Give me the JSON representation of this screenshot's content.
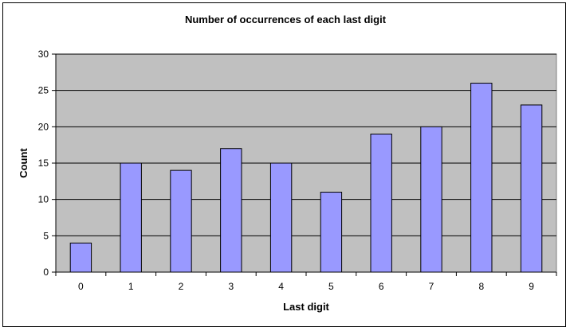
{
  "chart_data": {
    "type": "bar",
    "title": "Number of occurrences of each last digit",
    "xlabel": "Last digit",
    "ylabel": "Count",
    "categories": [
      "0",
      "1",
      "2",
      "3",
      "4",
      "5",
      "6",
      "7",
      "8",
      "9"
    ],
    "values": [
      4,
      15,
      14,
      17,
      15,
      11,
      19,
      20,
      26,
      23
    ],
    "ylim": [
      0,
      30
    ],
    "yticks": [
      "0",
      "5",
      "10",
      "15",
      "20",
      "25",
      "30"
    ],
    "grid": true,
    "legend": "none",
    "colors": {
      "bar_fill": "#9999ff",
      "bar_stroke": "#000000",
      "plot_background": "#c0c0c0",
      "gridline": "#000000"
    }
  }
}
